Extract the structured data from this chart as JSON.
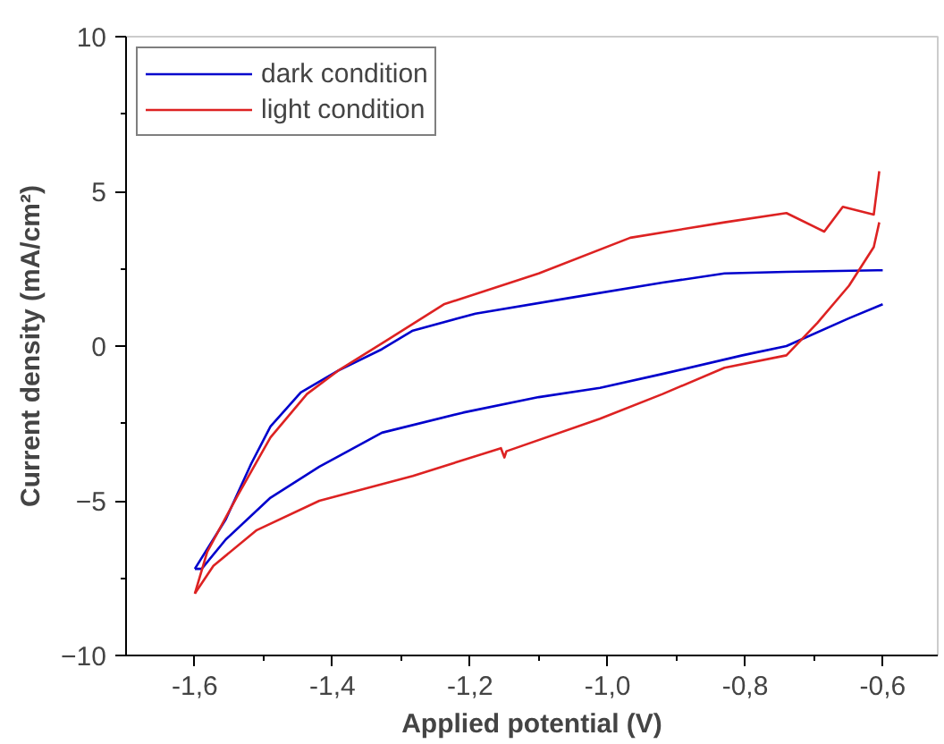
{
  "chart_data": {
    "type": "line",
    "xlabel": "Applied potential (V)",
    "ylabel": "Current density (mA/cm²)",
    "xlim": [
      -1.7,
      -0.52
    ],
    "ylim": [
      -10,
      10
    ],
    "xticks": [
      {
        "value": -1.6,
        "label": "-1,6"
      },
      {
        "value": -1.4,
        "label": "-1,4"
      },
      {
        "value": -1.2,
        "label": "-1,2"
      },
      {
        "value": -1.0,
        "label": "-1,0"
      },
      {
        "value": -0.8,
        "label": "-0,8"
      },
      {
        "value": -0.6,
        "label": "-0,6"
      }
    ],
    "yticks": [
      -10,
      -5,
      0,
      5,
      10
    ],
    "legend": "top left",
    "grid": false,
    "series": [
      {
        "name": "dark condition",
        "color": "#0000cc",
        "x": [
          -1.6,
          -1.555,
          -1.518,
          -1.49,
          -1.446,
          -1.392,
          -1.328,
          -1.283,
          -1.192,
          -1.057,
          -0.92,
          -0.83,
          -0.74,
          -0.608,
          -0.6
        ],
        "values": [
          -7.2,
          -5.6,
          -3.8,
          -2.6,
          -1.5,
          -0.8,
          -0.1,
          0.5,
          1.05,
          1.55,
          2.05,
          2.35,
          2.4,
          2.45,
          2.45
        ]
      },
      {
        "color": "#0000cc",
        "x": [
          -1.6,
          -1.59,
          -1.555,
          -1.49,
          -1.419,
          -1.328,
          -1.21,
          -1.1,
          -1.011,
          -0.92,
          -0.804,
          -0.74,
          -0.649,
          -0.6
        ],
        "values": [
          -7.2,
          -7.2,
          -6.25,
          -4.9,
          -3.9,
          -2.8,
          -2.15,
          -1.65,
          -1.35,
          -0.9,
          -0.3,
          0.0,
          0.9,
          1.35
        ]
      },
      {
        "name": "light condition",
        "color": "#dd2222",
        "x": [
          -1.6,
          -1.582,
          -1.537,
          -1.49,
          -1.437,
          -1.392,
          -1.32,
          -1.238,
          -1.1,
          -0.967,
          -0.83,
          -0.74,
          -0.685,
          -0.658,
          -0.613,
          -0.605
        ],
        "values": [
          -8.0,
          -6.65,
          -4.8,
          -2.95,
          -1.55,
          -0.8,
          0.2,
          1.35,
          2.35,
          3.5,
          4.0,
          4.3,
          3.7,
          4.5,
          4.25,
          5.65
        ]
      },
      {
        "color": "#dd2222",
        "x": [
          -1.6,
          -1.573,
          -1.51,
          -1.419,
          -1.283,
          -1.155,
          -1.15,
          -1.147,
          -1.011,
          -0.92,
          -0.83,
          -0.74,
          -0.695,
          -0.649,
          -0.613,
          -0.605
        ],
        "values": [
          -8.0,
          -7.1,
          -5.95,
          -5.0,
          -4.2,
          -3.3,
          -3.6,
          -3.4,
          -2.35,
          -1.55,
          -0.7,
          -0.3,
          0.75,
          1.95,
          3.2,
          4.0
        ]
      }
    ]
  }
}
